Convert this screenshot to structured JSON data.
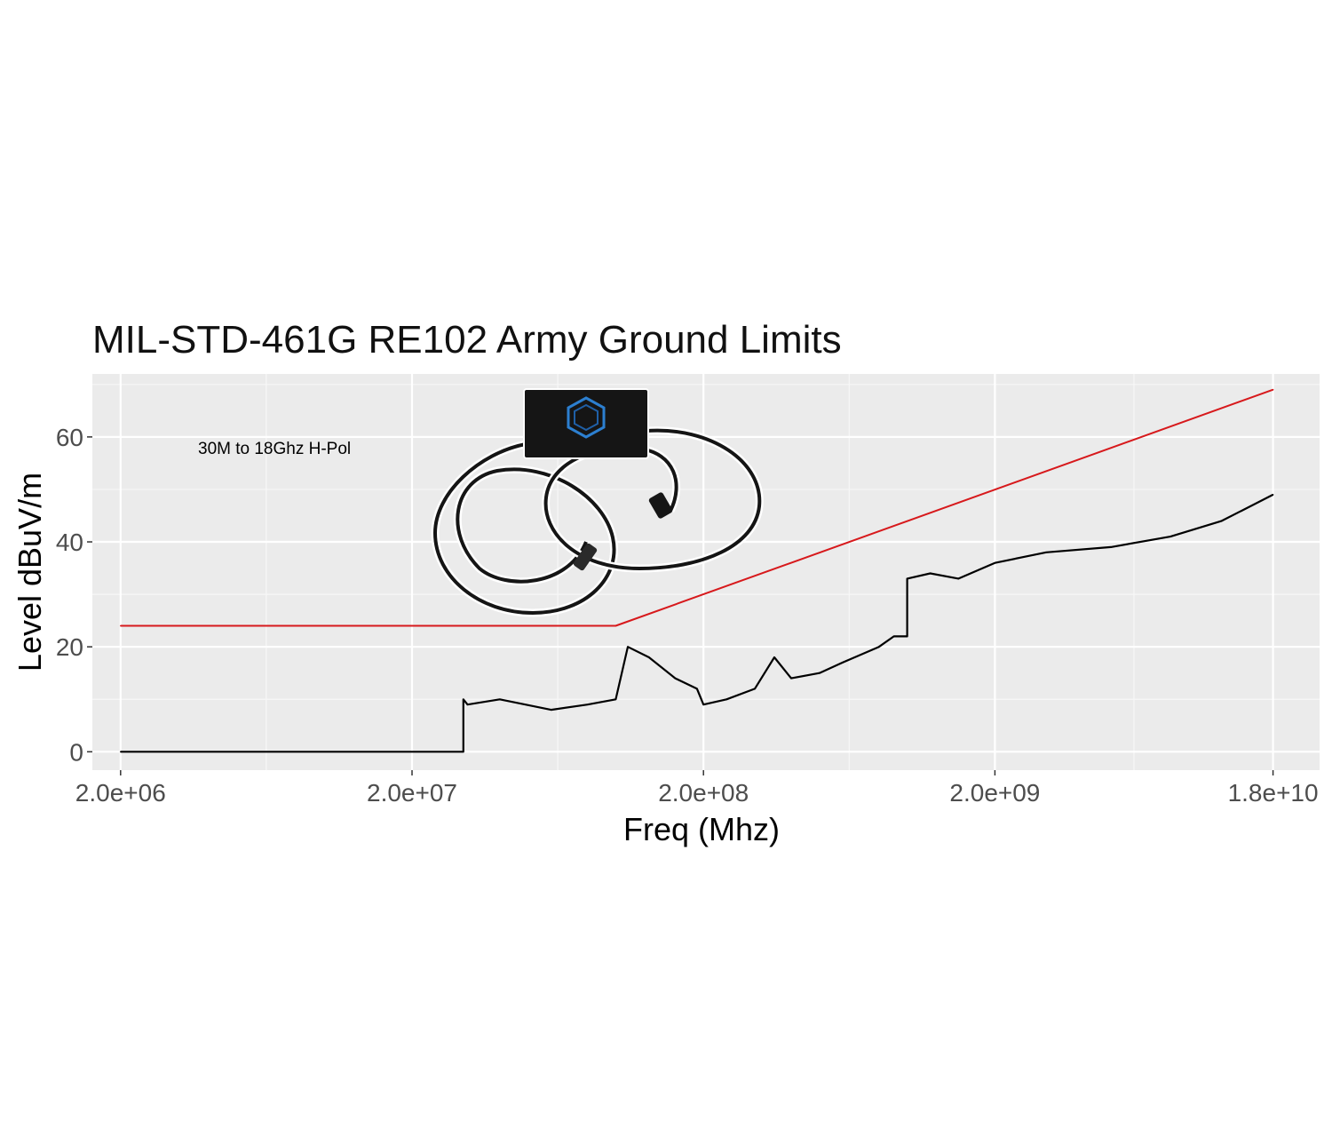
{
  "chart_data": {
    "type": "line",
    "title": "MIL-STD-461G RE102 Army Ground Limits",
    "xlabel": "Freq (Mhz)",
    "ylabel": "Level dBuV/m",
    "x_scale": "log",
    "xlim": [
      1600000,
      26000000000
    ],
    "ylim": [
      -3.5,
      72
    ],
    "x_ticks": [
      {
        "value": 2000000,
        "label": "2.0e+06"
      },
      {
        "value": 20000000,
        "label": "2.0e+07"
      },
      {
        "value": 200000000,
        "label": "2.0e+08"
      },
      {
        "value": 2000000000,
        "label": "2.0e+09"
      },
      {
        "value": 18000000000,
        "label": "1.8e+10"
      }
    ],
    "y_ticks": [
      {
        "value": 0,
        "label": "0"
      },
      {
        "value": 20,
        "label": "20"
      },
      {
        "value": 40,
        "label": "40"
      },
      {
        "value": 60,
        "label": "60"
      }
    ],
    "grid": true,
    "annotation": "30M to 18Ghz H-Pol",
    "series": [
      {
        "color": "#d7191c",
        "x": [
          2000000,
          100000000,
          18000000000
        ],
        "y": [
          24,
          24,
          69
        ]
      },
      {
        "color": "#000000",
        "x": [
          2000000,
          30000000,
          30000000,
          31000000,
          40000000,
          60000000,
          80000000,
          100000000,
          110000000,
          130000000,
          160000000,
          190000000,
          200000000,
          240000000,
          300000000,
          350000000,
          400000000,
          500000000,
          600000000,
          800000000,
          900000000,
          1000000000,
          1000000000,
          1200000000,
          1500000000,
          2000000000,
          3000000000,
          5000000000,
          8000000000,
          12000000000,
          18000000000
        ],
        "y": [
          0,
          0,
          10,
          9,
          10,
          8,
          9,
          10,
          20,
          18,
          14,
          12,
          9,
          10,
          12,
          18,
          14,
          15,
          17,
          20,
          22,
          22,
          33,
          34,
          33,
          36,
          38,
          39,
          41,
          44,
          49
        ]
      }
    ]
  },
  "photo": {
    "alt_name": "device-photo"
  }
}
